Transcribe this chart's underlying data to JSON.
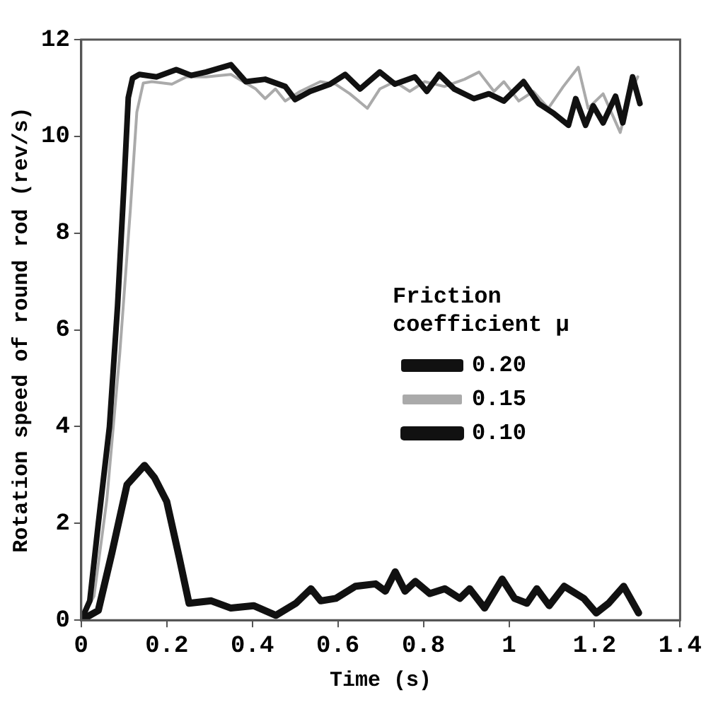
{
  "chart_data": {
    "type": "line",
    "xlabel": "Time (s)",
    "ylabel": "Rotation speed of round rod (rev/s)",
    "legend_title": "Friction\ncoefficient μ",
    "legend": "right",
    "grid": false,
    "marker": "none",
    "line_style": "solid",
    "xlim": [
      0,
      1.4
    ],
    "xticks": [
      0,
      0.2,
      0.4,
      0.6,
      0.8,
      1,
      1.2,
      1.4
    ],
    "ylim": [
      0,
      12
    ],
    "yticks": [
      0,
      2,
      4,
      6,
      8,
      10,
      12
    ],
    "series": [
      {
        "name": "0.20",
        "color": "#111111",
        "x": [
          0,
          0.02,
          0.04,
          0.066,
          0.085,
          0.1,
          0.11,
          0.12,
          0.136,
          0.176,
          0.222,
          0.257,
          0.292,
          0.35,
          0.385,
          0.43,
          0.477,
          0.5,
          0.535,
          0.582,
          0.617,
          0.652,
          0.698,
          0.733,
          0.78,
          0.808,
          0.837,
          0.872,
          0.918,
          0.953,
          0.988,
          1.034,
          1.069,
          1.104,
          1.139,
          1.156,
          1.179,
          1.197,
          1.22,
          1.249,
          1.266,
          1.289,
          1.306
        ],
        "values": [
          0,
          0.4,
          2,
          4,
          6.5,
          9,
          10.8,
          11.2,
          11.28,
          11.23,
          11.38,
          11.26,
          11.33,
          11.48,
          11.13,
          11.18,
          11.03,
          10.76,
          10.93,
          11.08,
          11.28,
          10.98,
          11.33,
          11.08,
          11.23,
          10.93,
          11.28,
          10.98,
          10.78,
          10.88,
          10.73,
          11.13,
          10.68,
          10.48,
          10.23,
          10.78,
          10.23,
          10.63,
          10.28,
          10.83,
          10.28,
          11.23,
          10.68
        ]
      },
      {
        "name": "0.15",
        "color": "#aaaaaa",
        "x": [
          0,
          0.03,
          0.06,
          0.09,
          0.115,
          0.13,
          0.145,
          0.165,
          0.212,
          0.246,
          0.292,
          0.35,
          0.408,
          0.43,
          0.454,
          0.477,
          0.512,
          0.559,
          0.594,
          0.628,
          0.669,
          0.698,
          0.733,
          0.768,
          0.803,
          0.849,
          0.896,
          0.93,
          0.965,
          0.988,
          1.023,
          1.057,
          1.092,
          1.127,
          1.162,
          1.185,
          1.22,
          1.26,
          1.283,
          1.301
        ],
        "values": [
          0,
          0.5,
          2.5,
          5.5,
          8.5,
          10.5,
          11.1,
          11.13,
          11.08,
          11.23,
          11.23,
          11.28,
          10.98,
          10.78,
          10.98,
          10.73,
          10.93,
          11.13,
          11.08,
          10.88,
          10.58,
          10.98,
          11.13,
          10.93,
          11.13,
          11.03,
          11.18,
          11.33,
          10.93,
          11.13,
          10.73,
          10.93,
          10.58,
          11.03,
          11.43,
          10.58,
          10.88,
          10.08,
          10.88,
          11.23
        ]
      },
      {
        "name": "0.10",
        "color": "#111111",
        "x": [
          0,
          0.04,
          0.072,
          0.107,
          0.148,
          0.171,
          0.2,
          0.229,
          0.252,
          0.304,
          0.35,
          0.403,
          0.455,
          0.502,
          0.537,
          0.56,
          0.595,
          0.641,
          0.688,
          0.711,
          0.734,
          0.757,
          0.781,
          0.815,
          0.85,
          0.885,
          0.908,
          0.943,
          0.984,
          1.013,
          1.042,
          1.065,
          1.094,
          1.129,
          1.175,
          1.204,
          1.233,
          1.268,
          1.303
        ],
        "values": [
          0,
          0.2,
          1.4,
          2.8,
          3.2,
          2.95,
          2.45,
          1.3,
          0.35,
          0.4,
          0.25,
          0.3,
          0.1,
          0.35,
          0.65,
          0.4,
          0.45,
          0.7,
          0.75,
          0.6,
          1.0,
          0.6,
          0.8,
          0.55,
          0.65,
          0.45,
          0.65,
          0.25,
          0.85,
          0.45,
          0.35,
          0.65,
          0.3,
          0.7,
          0.45,
          0.15,
          0.35,
          0.7,
          0.15
        ]
      }
    ]
  }
}
